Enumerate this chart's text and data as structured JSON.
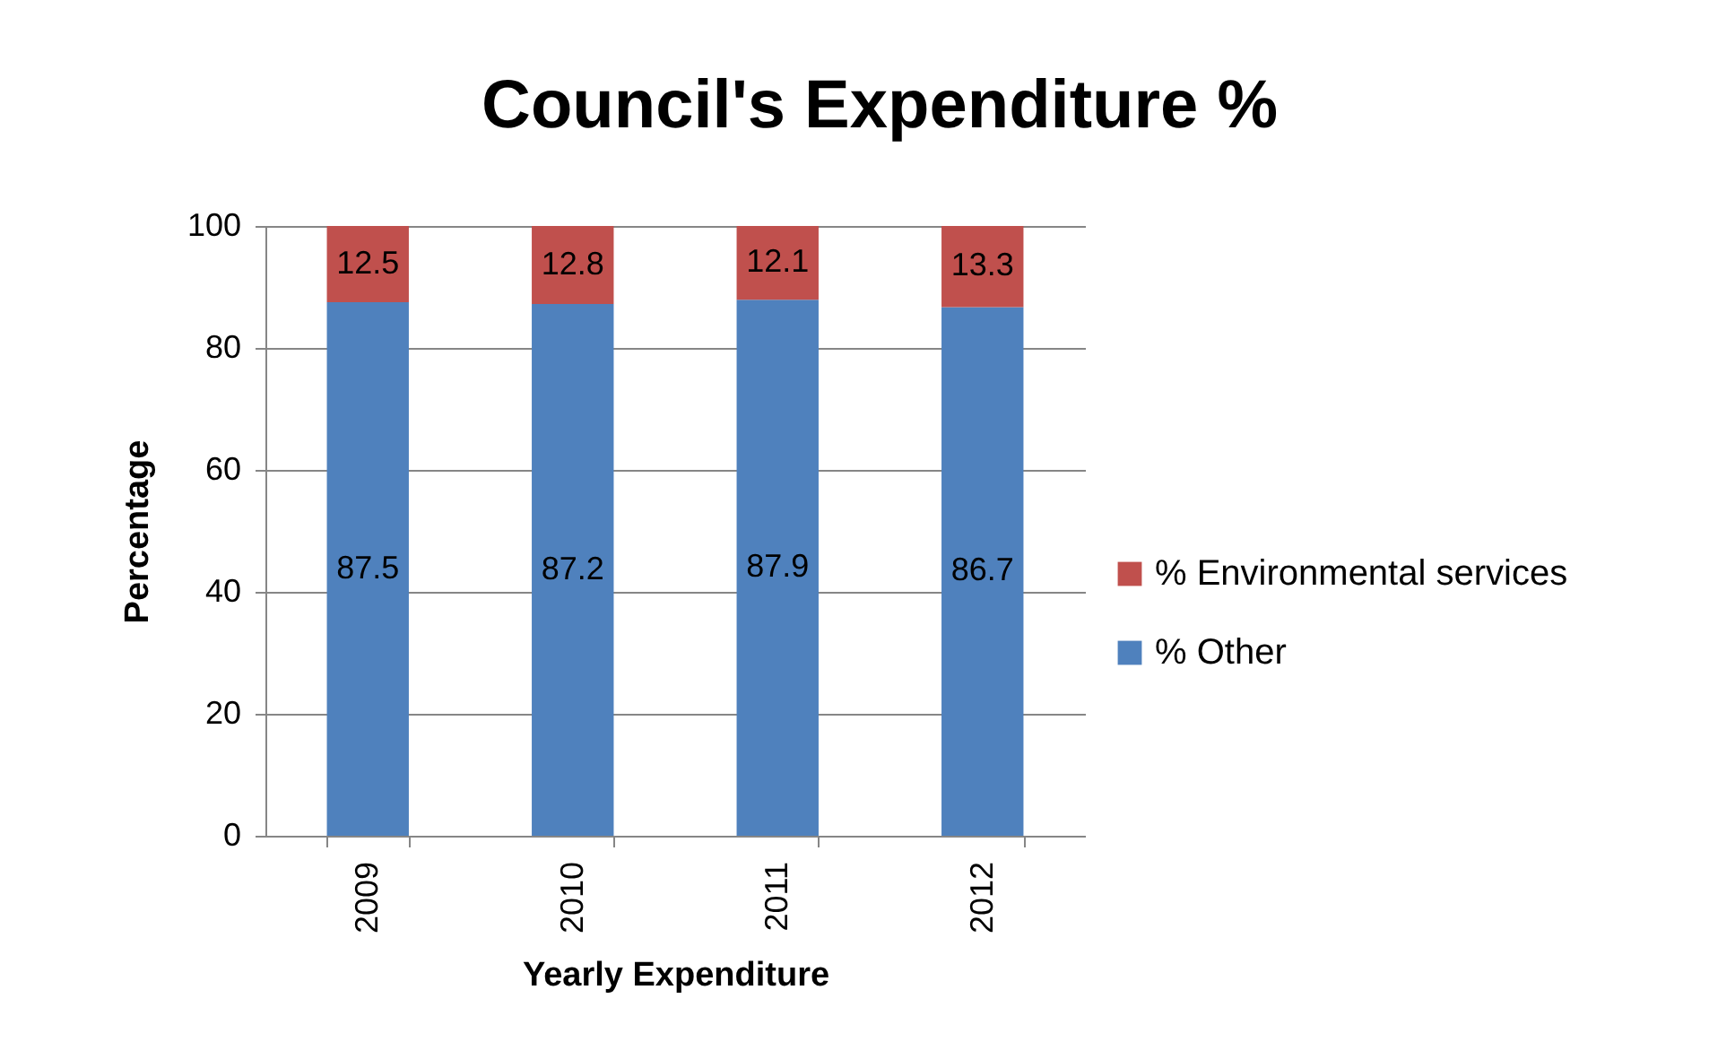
{
  "chart_data": {
    "type": "bar",
    "title": "Council's Expenditure %",
    "xlabel": "Yearly Expenditure",
    "ylabel": "Percentage",
    "categories": [
      "2009",
      "2010",
      "2011",
      "2012"
    ],
    "series": [
      {
        "name": "% Other",
        "color": "#4f81bd",
        "values": [
          87.5,
          87.2,
          87.9,
          86.7
        ]
      },
      {
        "name": "% Environmental services",
        "color": "#c0504d",
        "values": [
          12.5,
          12.8,
          12.1,
          13.3
        ]
      }
    ],
    "stacked": true,
    "ylim": [
      0,
      100
    ],
    "yticks": [
      0,
      20,
      40,
      60,
      80,
      100
    ],
    "grid": "y",
    "legend": "right",
    "data_labels": true
  }
}
